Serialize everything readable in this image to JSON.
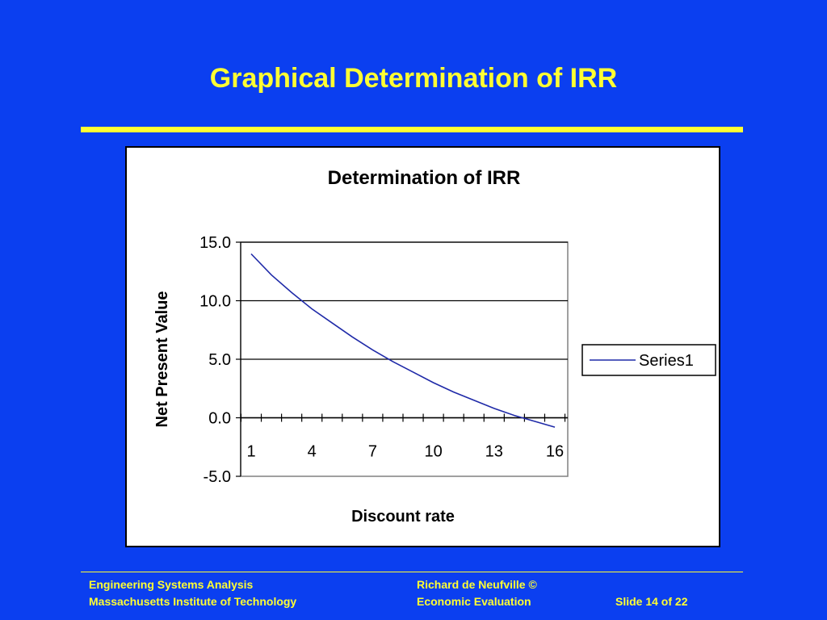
{
  "slide": {
    "title": "Graphical Determination of IRR"
  },
  "chart_data": {
    "type": "line",
    "title": "Determination of IRR",
    "xlabel": "Discount rate",
    "ylabel": "Net Present Value",
    "ylim": [
      -5,
      15
    ],
    "yticks": [
      "15.0",
      "10.0",
      "5.0",
      "0.0",
      "-5.0"
    ],
    "ytick_values": [
      15,
      10,
      5,
      0,
      -5
    ],
    "x": [
      1,
      2,
      3,
      4,
      5,
      6,
      7,
      8,
      9,
      10,
      11,
      12,
      13,
      14,
      15,
      16
    ],
    "xtick_labels": [
      "1",
      "4",
      "7",
      "10",
      "13",
      "16"
    ],
    "xtick_values": [
      1,
      4,
      7,
      10,
      13,
      16
    ],
    "grid": true,
    "legend_position": "right",
    "series": [
      {
        "name": "Series1",
        "color": "#1f2aa8",
        "values": [
          14.0,
          12.2,
          10.7,
          9.3,
          8.1,
          6.9,
          5.8,
          4.8,
          3.9,
          3.0,
          2.2,
          1.5,
          0.8,
          0.2,
          -0.3,
          -0.8
        ]
      }
    ]
  },
  "footer": {
    "left_line1": "Engineering Systems Analysis",
    "left_line2": "Massachusetts Institute of Technology",
    "mid_line1": "Richard de Neufville  ©",
    "mid_line2": "Economic Evaluation",
    "slide_number": "Slide 14 of 22"
  }
}
